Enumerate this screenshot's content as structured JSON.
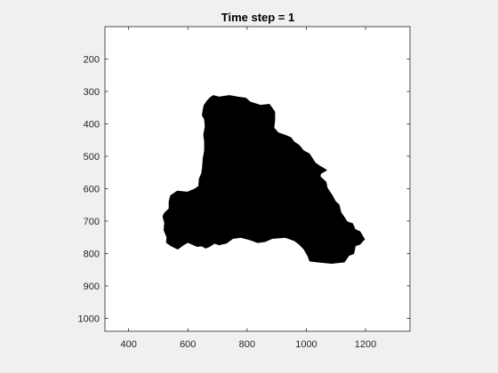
{
  "chart_data": {
    "type": "image",
    "title": "Time step = 1",
    "xlabel": "",
    "ylabel": "",
    "xlim": [
      320,
      1350
    ],
    "ylim": [
      100,
      1040
    ],
    "y_reversed": true,
    "x_ticks": [
      400,
      600,
      800,
      1000,
      1200
    ],
    "y_ticks": [
      200,
      300,
      400,
      500,
      600,
      700,
      800,
      900,
      1000
    ],
    "grid": false,
    "colors": {
      "background": "#ffffff",
      "region": "#000000",
      "figure": "#f0f0f0",
      "axis": "#262626"
    },
    "region_outline": [
      [
        686,
        313
      ],
      [
        705,
        318
      ],
      [
        740,
        313
      ],
      [
        770,
        318
      ],
      [
        795,
        321
      ],
      [
        810,
        333
      ],
      [
        845,
        343
      ],
      [
        875,
        340
      ],
      [
        893,
        363
      ],
      [
        893,
        388
      ],
      [
        890,
        413
      ],
      [
        905,
        428
      ],
      [
        930,
        436
      ],
      [
        948,
        443
      ],
      [
        958,
        456
      ],
      [
        975,
        466
      ],
      [
        990,
        483
      ],
      [
        1010,
        493
      ],
      [
        1030,
        521
      ],
      [
        1044,
        530
      ],
      [
        1068,
        543
      ],
      [
        1048,
        553
      ],
      [
        1046,
        563
      ],
      [
        1066,
        580
      ],
      [
        1070,
        598
      ],
      [
        1086,
        620
      ],
      [
        1098,
        640
      ],
      [
        1110,
        650
      ],
      [
        1116,
        673
      ],
      [
        1138,
        703
      ],
      [
        1156,
        708
      ],
      [
        1164,
        726
      ],
      [
        1181,
        733
      ],
      [
        1196,
        756
      ],
      [
        1181,
        771
      ],
      [
        1165,
        776
      ],
      [
        1160,
        800
      ],
      [
        1143,
        806
      ],
      [
        1128,
        826
      ],
      [
        1085,
        830
      ],
      [
        1040,
        826
      ],
      [
        1012,
        823
      ],
      [
        1005,
        806
      ],
      [
        992,
        786
      ],
      [
        975,
        770
      ],
      [
        960,
        760
      ],
      [
        930,
        750
      ],
      [
        885,
        753
      ],
      [
        860,
        763
      ],
      [
        835,
        766
      ],
      [
        812,
        758
      ],
      [
        780,
        750
      ],
      [
        752,
        753
      ],
      [
        730,
        768
      ],
      [
        705,
        773
      ],
      [
        690,
        768
      ],
      [
        673,
        778
      ],
      [
        660,
        783
      ],
      [
        647,
        776
      ],
      [
        632,
        778
      ],
      [
        600,
        765
      ],
      [
        585,
        773
      ],
      [
        566,
        786
      ],
      [
        544,
        776
      ],
      [
        528,
        766
      ],
      [
        530,
        750
      ],
      [
        520,
        728
      ],
      [
        522,
        705
      ],
      [
        516,
        685
      ],
      [
        522,
        675
      ],
      [
        537,
        662
      ],
      [
        537,
        640
      ],
      [
        542,
        622
      ],
      [
        564,
        608
      ],
      [
        598,
        611
      ],
      [
        622,
        602
      ],
      [
        637,
        593
      ],
      [
        639,
        570
      ],
      [
        647,
        553
      ],
      [
        650,
        533
      ],
      [
        652,
        506
      ],
      [
        657,
        483
      ],
      [
        657,
        456
      ],
      [
        654,
        433
      ],
      [
        659,
        408
      ],
      [
        657,
        386
      ],
      [
        649,
        373
      ],
      [
        652,
        356
      ],
      [
        655,
        343
      ],
      [
        665,
        330
      ],
      [
        675,
        320
      ]
    ]
  }
}
